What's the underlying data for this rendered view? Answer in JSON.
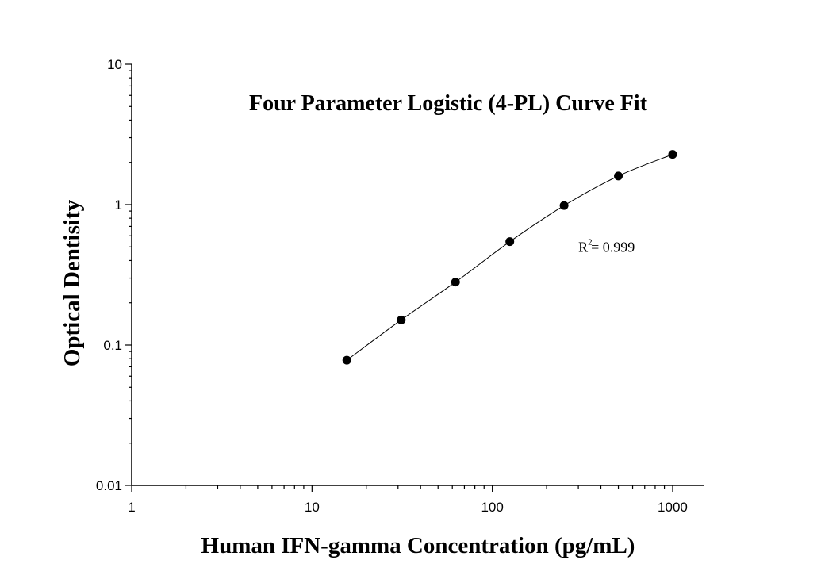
{
  "chart_data": {
    "type": "scatter",
    "title": "Four Parameter Logistic (4-PL) Curve Fit",
    "xlabel": "Human IFN-gamma Concentration (pg/mL)",
    "ylabel": "Optical Dentisity",
    "x_scale": "log",
    "y_scale": "log",
    "xlim": [
      1,
      1500
    ],
    "ylim": [
      0.01,
      10
    ],
    "x_ticks": [
      {
        "value": 1,
        "label": "1"
      },
      {
        "value": 10,
        "label": "10"
      },
      {
        "value": 100,
        "label": "100"
      },
      {
        "value": 1000,
        "label": "1000"
      }
    ],
    "y_ticks": [
      {
        "value": 0.01,
        "label": "0.01"
      },
      {
        "value": 0.1,
        "label": "0.1"
      },
      {
        "value": 1,
        "label": "1"
      },
      {
        "value": 10,
        "label": "10"
      }
    ],
    "grid": false,
    "legend": "none",
    "series": [
      {
        "x": [
          15.6,
          31.25,
          62.5,
          125,
          250,
          500,
          1000
        ],
        "y": [
          0.078,
          0.151,
          0.281,
          0.545,
          0.985,
          1.6,
          2.28
        ]
      }
    ],
    "fit_curve": {
      "model": "4-PL",
      "x_range": [
        15.6,
        1000
      ]
    },
    "annotation": {
      "base": "R",
      "superscript": "2",
      "text": "= 0.999",
      "x": 300,
      "y": 0.5
    },
    "colors": {
      "points": "#000000",
      "curve": "#000000",
      "axes": "#000000"
    }
  }
}
